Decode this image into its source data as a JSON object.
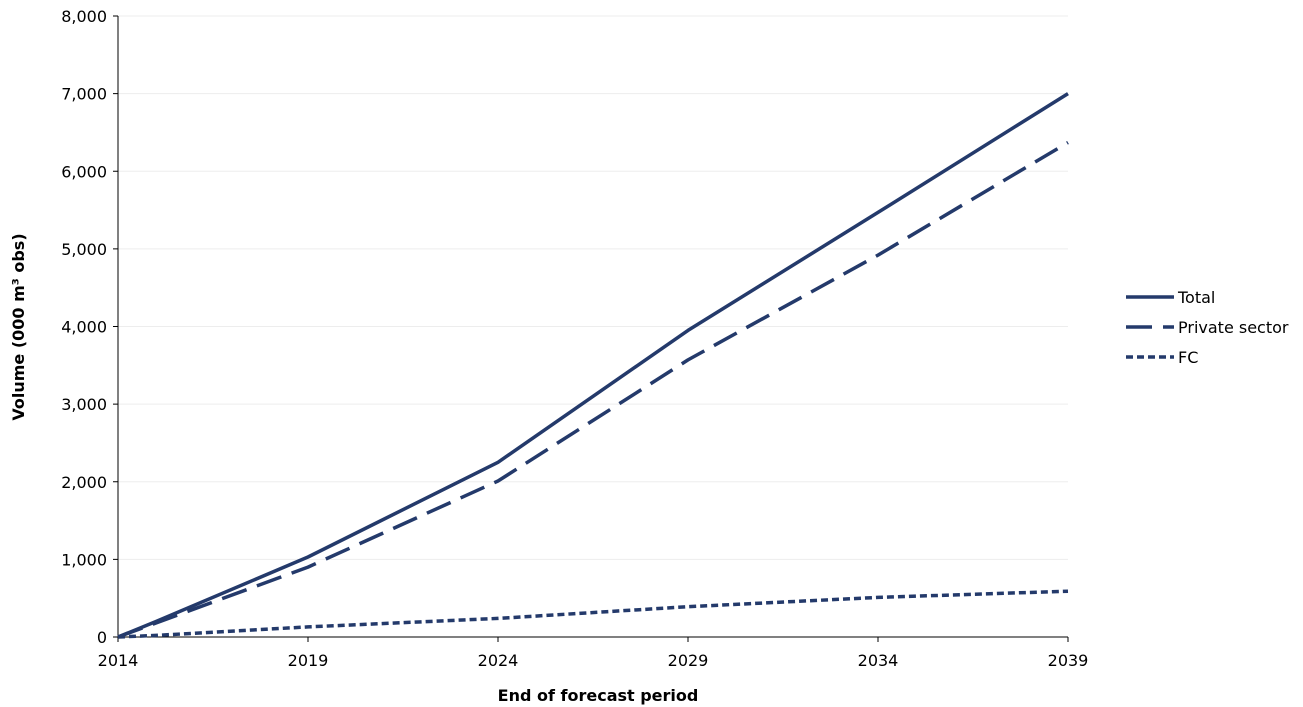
{
  "chart_data": {
    "type": "line",
    "xlabel": "End of forecast period",
    "ylabel": "Volume (000 m³ obs)",
    "x": [
      2014,
      2015,
      2019,
      2024,
      2029,
      2034,
      2039
    ],
    "x_ticks": [
      "2014",
      "2019",
      "2024",
      "2029",
      "2034",
      "2039"
    ],
    "y_ticks": [
      "0",
      "1,000",
      "2,000",
      "3,000",
      "4,000",
      "5,000",
      "6,000",
      "7,000",
      "8,000"
    ],
    "xlim": [
      2014,
      2039
    ],
    "ylim": [
      0,
      8000
    ],
    "grid": true,
    "legend_position": "right",
    "series": [
      {
        "name": "Total",
        "style": "solid",
        "color": "#243a6b",
        "values": [
          0,
          200,
          1030,
          2250,
          3950,
          5470,
          7000
        ]
      },
      {
        "name": "Private sector",
        "style": "long-dash",
        "color": "#243a6b",
        "values": [
          0,
          180,
          900,
          2010,
          3570,
          4920,
          6370
        ]
      },
      {
        "name": "FC",
        "style": "short-dash",
        "color": "#243a6b",
        "values": [
          0,
          20,
          130,
          240,
          390,
          510,
          590
        ]
      }
    ]
  }
}
